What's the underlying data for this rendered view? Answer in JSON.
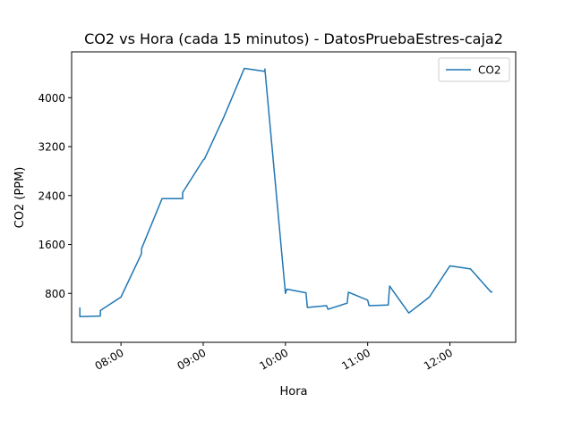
{
  "chart_data": {
    "type": "line",
    "title": "CO2 vs Hora (cada 15 minutos) - DatosPruebaEstres-caja2",
    "xlabel": "Hora",
    "ylabel": "CO2 (PPM)",
    "grid": false,
    "legend_position": "top-right",
    "x_ticks": [
      "08:00",
      "09:00",
      "10:00",
      "11:00",
      "12:00"
    ],
    "y_ticks": [
      800,
      1600,
      2400,
      3200,
      4000
    ],
    "xlim": [
      "07:24",
      "12:48"
    ],
    "ylim": [
      0,
      4750
    ],
    "series": [
      {
        "name": "CO2",
        "color": "#1f77b4",
        "x": [
          "07:30",
          "07:30",
          "07:45",
          "07:45",
          "08:00",
          "08:15",
          "08:15",
          "08:30",
          "08:45",
          "08:45",
          "09:00",
          "09:01",
          "09:15",
          "09:30",
          "09:45",
          "09:45",
          "10:00",
          "10:01",
          "10:15",
          "10:16",
          "10:30",
          "10:31",
          "10:45",
          "10:46",
          "11:00",
          "11:01",
          "11:15",
          "11:16",
          "11:30",
          "11:45",
          "12:00",
          "12:15",
          "12:30",
          "12:31"
        ],
        "y": [
          570,
          420,
          430,
          520,
          740,
          1450,
          1530,
          2350,
          2350,
          2450,
          2980,
          3000,
          3680,
          4480,
          4430,
          4470,
          800,
          870,
          810,
          570,
          600,
          540,
          640,
          820,
          690,
          600,
          610,
          920,
          480,
          740,
          1250,
          1200,
          820,
          830
        ]
      }
    ]
  }
}
